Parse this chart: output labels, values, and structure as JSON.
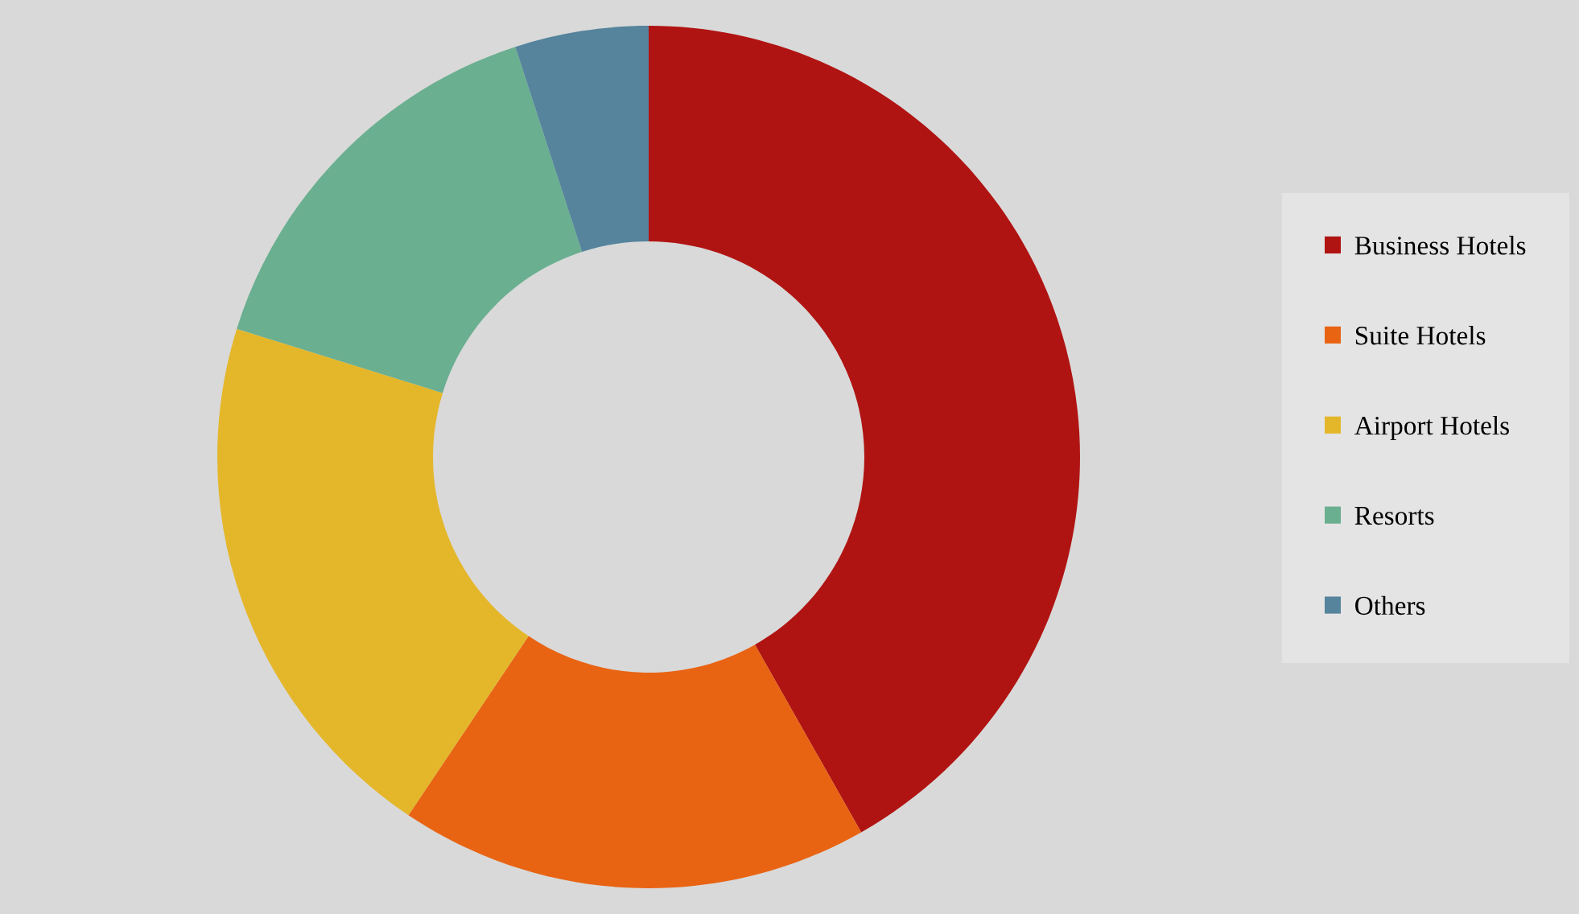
{
  "chart_data": {
    "type": "donut",
    "categories": [
      "Business Hotels",
      "Suite Hotels",
      "Airport Hotels",
      "Resorts",
      "Others"
    ],
    "values": [
      41.8,
      17.6,
      20.4,
      15.2,
      5.0
    ],
    "colors": [
      "#b01412",
      "#e86413",
      "#e4b72b",
      "#6aaf90",
      "#55849c"
    ],
    "legend": "right"
  }
}
